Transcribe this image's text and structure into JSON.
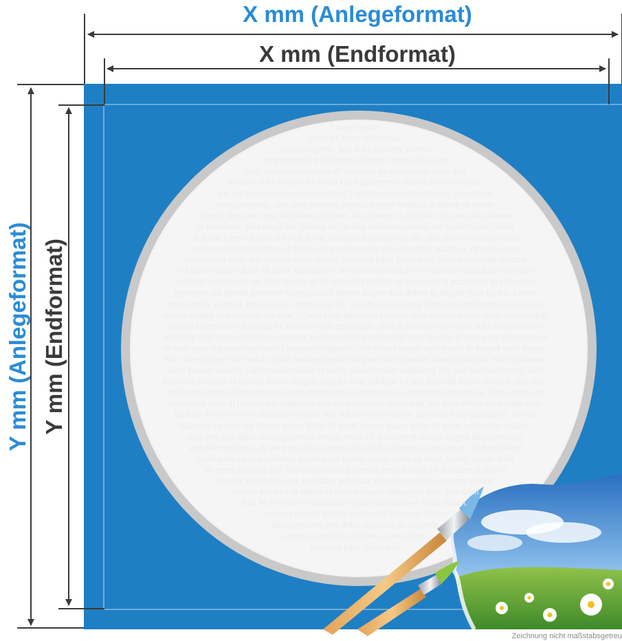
{
  "colors": {
    "accent_blue": "#2a8bd5",
    "dark": "#3a3a3a",
    "panel_blue": "#1f7fc4",
    "ring_gray": "#c7c7c7",
    "circle_fill": "#f3f3f3"
  },
  "labels": {
    "anlege_x": "X mm (Anlegeformat)",
    "end_x": "X mm (Endformat)",
    "anlege_y": "Y mm (Anlegeformat)",
    "end_y": "Y mm (Endformat)"
  },
  "body_text": [
    "Lorem ipsum",
    "dolor sit amet, consetetur",
    "sadipscing elitr, sed diam nonumy eirmod",
    "tempor invidunt ut labore et dolore magna aliquyam",
    "erat, sed diam voluptua. At vero eos et accusam et justo duo",
    "dolores et ea rebum. Stet clita kasd gubergren, no sea takimata sanc-",
    "tus est Lorem ipsum dolor sit amet. Lorem ipsum dolor sit amet, consetetur",
    "sadipscing elitr, sed diam nonumy eirmod tempor invidunt ut labore et dolore",
    "magna aliquyam erat, sed diam voluptua. At vero eos et accusam et justo duo dolores",
    "et ea rebum. Stet clita kasd gubergren, no sea takimata sanctus est Lorem ipsum dolor",
    "sit amet. Lorem ipsum dolor sit amet, consetetur sadipscing elitr, sed diam nonumy eirmod",
    "tempor invidunt ut labore et dolore magna aliquyam erat, sed diam voluptua. At vero eos et",
    "accusam et justo duo dolores et ea rebum. Stet clita kasd gubergren, no sea takimata sanctus",
    "est Lorem ipsum dolor sit amet. Duis autem vel eum iriure dolor in hendrerit in vulputate velit esse",
    "molestie consequat, vel illum dolore eu feugiat nulla facilisis at vero eros et accumsan et iusto odio",
    "dignissim qui blandit praesent luptatum zzril delenit augue duis dolore te feugait nulla facilisi. Lorem",
    "ipsum dolor sit amet, consectetuer adipiscing elit, sed diam nonummy nibh euismod tincidunt ut laoreet",
    "dolore magna aliquam erat volutpat. Ut wisi enim ad minim veniam, quis nostrud exerci tation ullamcorper",
    "suscipit lobortis nisl ut aliquip ex ea commodo consequat. Duis autem vel eum iriure dolor in hendrerit in",
    "vulputate velit esse molestie consequat, vel illum dolore eu feugiat nulla facilisis at vero eros et accumsan",
    "et iusto odio dignissim qui blandit praesent luptatum zzril delenit augue duis dolore te feugait nulla facilisi.",
    "Nam liber tempor cum soluta nobis eleifend option congue nihil imperdiet doming id quod mazim placerat",
    "facer possim assum. Lorem ipsum dolor sit amet, consectetuer adipiscing elit, sed diam nonummy nibh",
    "euismod tincidunt ut laoreet dolore magna aliquam erat volutpat. Ut wisi enim ad minim veniam, quis nos-",
    "trud exerci tation ullamcorper suscipit lobortis nisl ut aliquip ex ea commodo consequat. Duis autem vel",
    "eum iriure dolor in hendrerit in vulputate velit esse molestie consequat, vel illum dolore eu feugiat nulla",
    "facilisis. At vero eos et accusam et justo duo dolores et ea rebum. Stet clita kasd gubergren, no sea",
    "takimata sanctus est Lorem ipsum dolor sit amet. Lorem ipsum dolor sit amet, consetetur sadips-",
    "cing elitr, sed diam nonumy eirmod tempor invidunt ut labore et dolore magna aliquyam erat,",
    "sed diam voluptua. At vero eos et accusam et justo duo dolores et ea rebum. Stet clita kasd",
    "gubergren, no sea takimata sanctus est Lorem ipsum dolor sit amet. Lorem ipsum dolor",
    "sit amet,dipscing elitr, sed diam nonumy eirmod tempor invidunt ut labore et dolore",
    "magna aliquyyam erat, sed diam voluptua. At vetr, sed diam nonumy eirmod",
    "tempor invidunt ut labore et dolore magna aliquyyam erat, sed diam",
    "tua. At vero eos et accusam et justo duo dolores et ea rebum.",
    "nonumy eirmod tempor invidunt ut labore et dolore",
    "aliquyam erat, sed diam voluptua. At vero eos",
    "cusam et justo duo dolores et ea rebum.",
    "Stet clita kasd gubergren"
  ],
  "footnote": "Zeichnung nicht maßstabsgetreu"
}
